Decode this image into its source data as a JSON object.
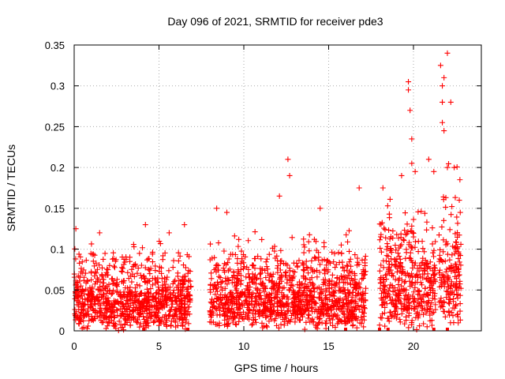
{
  "chart_data": {
    "type": "scatter",
    "title": "Day 096 of 2021, SRMTID for receiver pde3",
    "xlabel": "GPS time / hours",
    "ylabel": "SRMTID / TECUs",
    "xlim": [
      0,
      24
    ],
    "ylim": [
      0,
      0.35
    ],
    "xticks": [
      0,
      5,
      10,
      15,
      20
    ],
    "yticks": [
      0,
      0.05,
      0.1,
      0.15,
      0.2,
      0.25,
      0.3,
      0.35
    ],
    "ytick_labels": [
      "0",
      "0.05",
      "0.1",
      "0.15",
      "0.2",
      "0.25",
      "0.3",
      "0.35"
    ],
    "grid": true,
    "marker": "+",
    "color": "#ff0000",
    "series": [
      {
        "name": "SRMTID",
        "segments": [
          {
            "x_range": [
              0,
              6.9
            ],
            "y_typical": [
              0,
              0.12
            ],
            "y_max": 0.135
          },
          {
            "x_range": [
              8.0,
              17.2
            ],
            "y_typical": [
              0,
              0.13
            ],
            "y_max": 0.21
          },
          {
            "x_range": [
              18.0,
              21.3
            ],
            "y_typical": [
              0,
              0.18
            ],
            "y_max": 0.305
          },
          {
            "x_range": [
              21.5,
              22.8
            ],
            "y_typical": [
              0,
              0.22
            ],
            "y_max": 0.34
          }
        ],
        "notable_points": [
          {
            "x": 0.1,
            "y": 0.125
          },
          {
            "x": 1.5,
            "y": 0.12
          },
          {
            "x": 4.2,
            "y": 0.13
          },
          {
            "x": 5.6,
            "y": 0.12
          },
          {
            "x": 6.5,
            "y": 0.13
          },
          {
            "x": 8.4,
            "y": 0.15
          },
          {
            "x": 9.0,
            "y": 0.145
          },
          {
            "x": 12.1,
            "y": 0.165
          },
          {
            "x": 12.6,
            "y": 0.21
          },
          {
            "x": 12.7,
            "y": 0.19
          },
          {
            "x": 14.5,
            "y": 0.15
          },
          {
            "x": 16.8,
            "y": 0.175
          },
          {
            "x": 18.2,
            "y": 0.175
          },
          {
            "x": 19.3,
            "y": 0.19
          },
          {
            "x": 19.7,
            "y": 0.305
          },
          {
            "x": 19.7,
            "y": 0.295
          },
          {
            "x": 19.8,
            "y": 0.27
          },
          {
            "x": 19.9,
            "y": 0.235
          },
          {
            "x": 19.9,
            "y": 0.205
          },
          {
            "x": 20.1,
            "y": 0.195
          },
          {
            "x": 20.9,
            "y": 0.21
          },
          {
            "x": 21.2,
            "y": 0.195
          },
          {
            "x": 21.6,
            "y": 0.325
          },
          {
            "x": 21.7,
            "y": 0.3
          },
          {
            "x": 21.8,
            "y": 0.31
          },
          {
            "x": 21.7,
            "y": 0.28
          },
          {
            "x": 21.7,
            "y": 0.255
          },
          {
            "x": 21.8,
            "y": 0.245
          },
          {
            "x": 22.0,
            "y": 0.34
          },
          {
            "x": 22.2,
            "y": 0.28
          },
          {
            "x": 22.0,
            "y": 0.2
          },
          {
            "x": 22.4,
            "y": 0.2
          },
          {
            "x": 22.7,
            "y": 0.16
          }
        ],
        "zero_markers_x": [
          4.1,
          6.7,
          16.0,
          18.0,
          18.5,
          21.2,
          22.0
        ]
      }
    ]
  }
}
